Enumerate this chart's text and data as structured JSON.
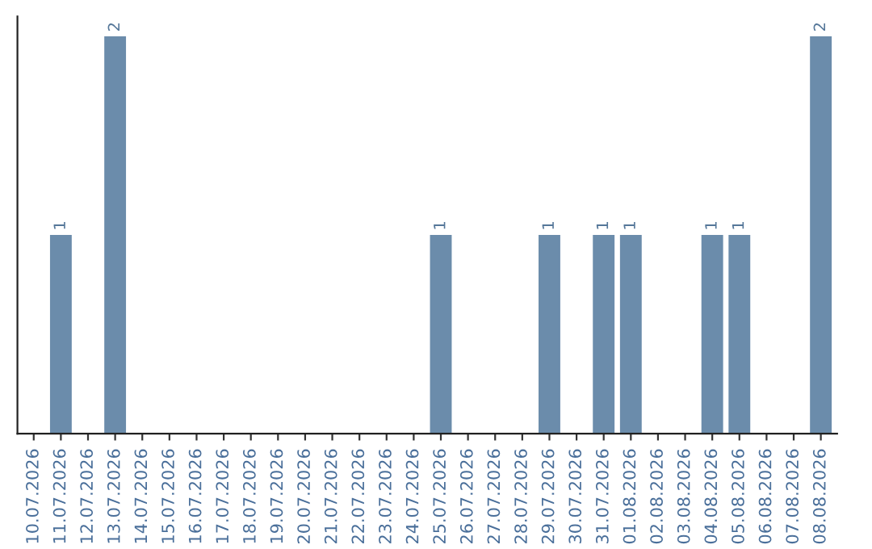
{
  "chart_data": {
    "type": "bar",
    "categories": [
      "10.07.2026",
      "11.07.2026",
      "12.07.2026",
      "13.07.2026",
      "14.07.2026",
      "15.07.2026",
      "16.07.2026",
      "17.07.2026",
      "18.07.2026",
      "19.07.2026",
      "20.07.2026",
      "21.07.2026",
      "22.07.2026",
      "23.07.2026",
      "24.07.2026",
      "25.07.2026",
      "26.07.2026",
      "27.07.2026",
      "28.07.2026",
      "29.07.2026",
      "30.07.2026",
      "31.07.2026",
      "01.08.2026",
      "02.08.2026",
      "03.08.2026",
      "04.08.2026",
      "05.08.2026",
      "06.08.2026",
      "07.08.2026",
      "08.08.2026"
    ],
    "values": [
      0,
      1,
      0,
      2,
      0,
      0,
      0,
      0,
      0,
      0,
      0,
      0,
      0,
      0,
      0,
      1,
      0,
      0,
      0,
      1,
      0,
      1,
      1,
      0,
      0,
      1,
      1,
      0,
      0,
      2
    ],
    "value_labels": [
      null,
      "1",
      null,
      "2",
      null,
      null,
      null,
      null,
      null,
      null,
      null,
      null,
      null,
      null,
      null,
      "1",
      null,
      null,
      null,
      "1",
      null,
      "1",
      "1",
      null,
      null,
      "1",
      "1",
      null,
      null,
      "2"
    ],
    "color": "#6b8cab",
    "ylim": [
      0,
      2.1
    ],
    "tick_labels": "x",
    "grid": false,
    "legend": false
  }
}
